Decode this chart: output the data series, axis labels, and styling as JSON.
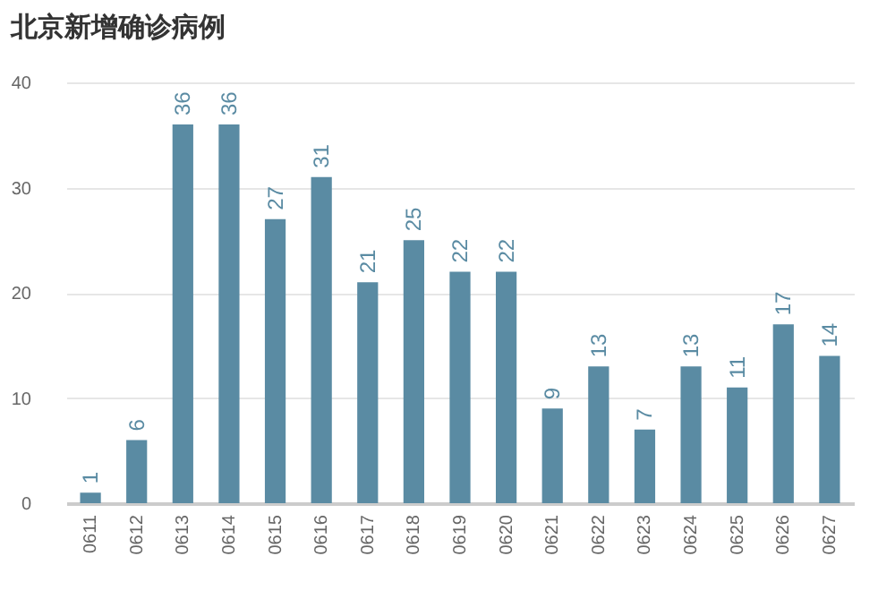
{
  "chart_data": {
    "type": "bar",
    "title": "北京新增确诊病例",
    "categories": [
      "0611",
      "0612",
      "0613",
      "0614",
      "0615",
      "0616",
      "0617",
      "0618",
      "0619",
      "0620",
      "0621",
      "0622",
      "0623",
      "0624",
      "0625",
      "0626",
      "0627"
    ],
    "values": [
      1,
      6,
      36,
      36,
      27,
      31,
      21,
      25,
      22,
      22,
      9,
      13,
      7,
      13,
      11,
      17,
      14
    ],
    "color": "#5a8ba3",
    "ylim": [
      0,
      40
    ],
    "yticks": [
      0,
      10,
      20,
      30,
      40
    ],
    "grid": "y",
    "data_labels": true
  }
}
